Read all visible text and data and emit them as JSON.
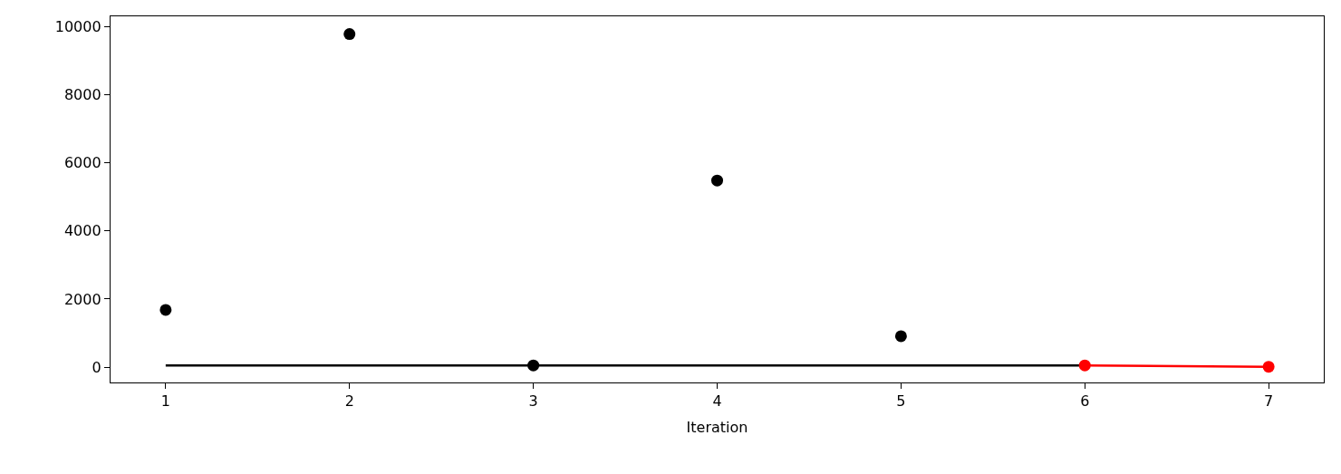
{
  "chart_data": {
    "type": "scatter",
    "xlabel": "Iteration",
    "xlim": [
      0.7,
      7.3
    ],
    "xticks": [
      1,
      2,
      3,
      4,
      5,
      6,
      7
    ],
    "ylim": [
      -450,
      10300
    ],
    "yticks": [
      0,
      2000,
      4000,
      6000,
      8000,
      10000
    ],
    "grid": false,
    "series": [
      {
        "color": "#000000",
        "marker": "circle",
        "x": [
          1,
          2,
          3,
          4,
          5
        ],
        "values": [
          1680,
          9780,
          50,
          5480,
          910
        ]
      },
      {
        "type": "line",
        "color": "#000000",
        "marker": "none",
        "line_style": "solid",
        "x": [
          1,
          6
        ],
        "values": [
          50,
          50
        ]
      },
      {
        "type": "line",
        "color": "#ff0000",
        "marker": "circle",
        "line_style": "solid",
        "x": [
          6,
          7
        ],
        "values": [
          50,
          10
        ]
      }
    ]
  }
}
